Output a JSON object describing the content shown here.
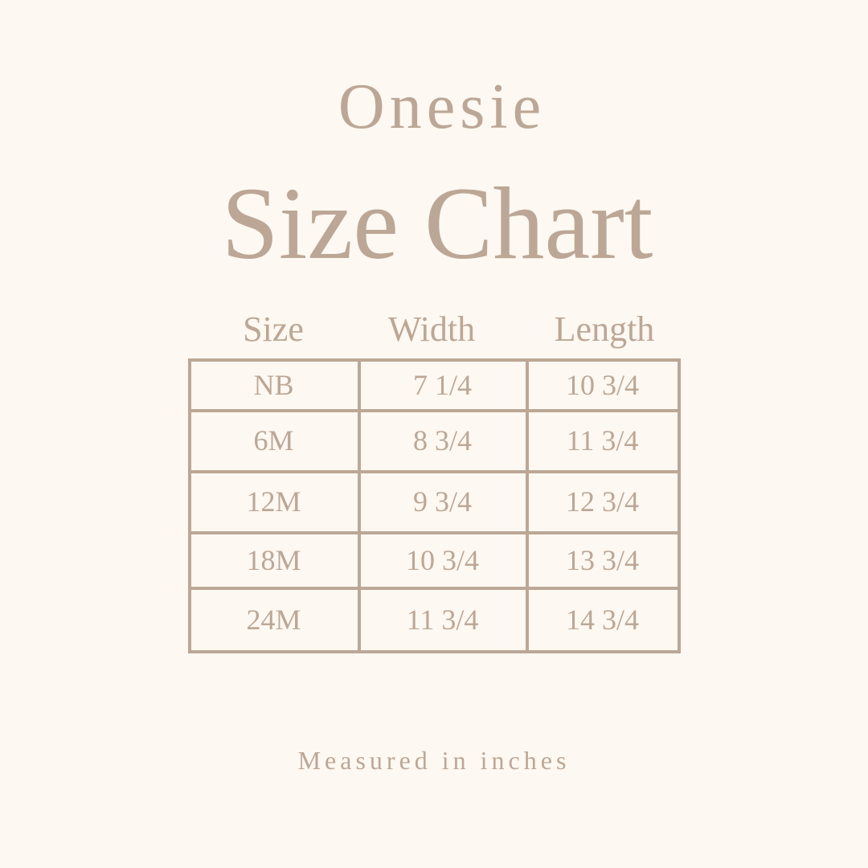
{
  "header": {
    "subtitle": "Onesie",
    "title": "Size Chart"
  },
  "table": {
    "columns": [
      "Size",
      "Width",
      "Length"
    ],
    "rows": [
      [
        "NB",
        "7 1/4",
        "10 3/4"
      ],
      [
        "6M",
        "8 3/4",
        "11 3/4"
      ],
      [
        "12M",
        "9 3/4",
        "12 3/4"
      ],
      [
        "18M",
        "10 3/4",
        "13 3/4"
      ],
      [
        "24M",
        "11 3/4",
        "14 3/4"
      ]
    ]
  },
  "footer": {
    "note": "Measured in inches"
  },
  "colors": {
    "background": "#fdf8f1",
    "text": "#bca796"
  }
}
